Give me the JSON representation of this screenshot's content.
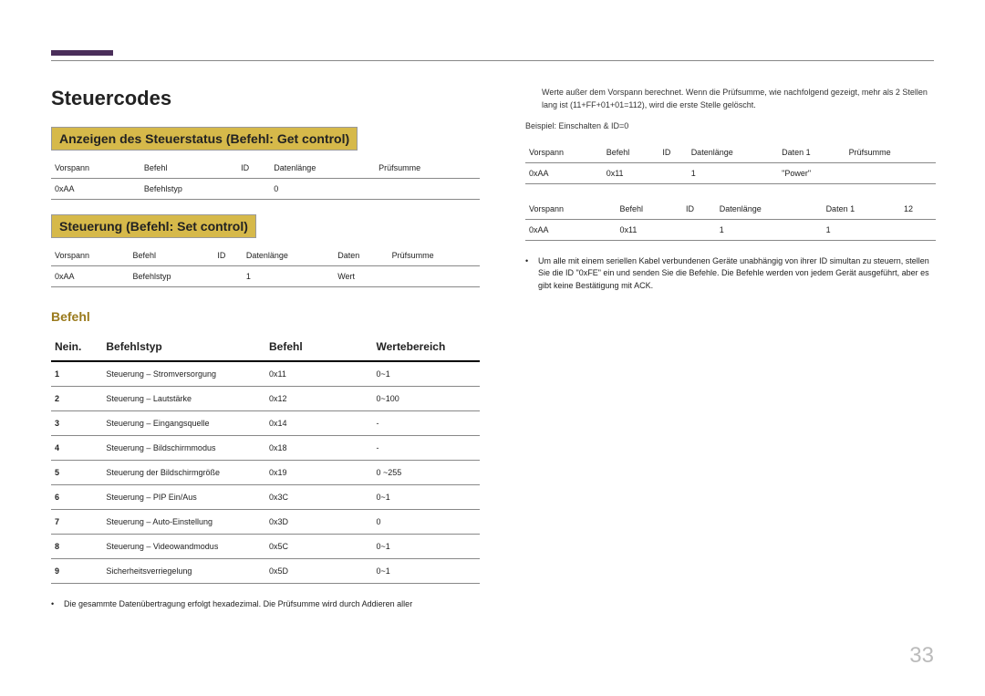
{
  "page_number": "33",
  "title": "Steuercodes",
  "section1": {
    "heading": "Anzeigen des Steuerstatus (Befehl: Get control)",
    "headers": [
      "Vorspann",
      "Befehl",
      "ID",
      "Datenlänge",
      "Prüfsumme"
    ],
    "row": [
      "0xAA",
      "Befehlstyp",
      "",
      "0",
      ""
    ]
  },
  "section2": {
    "heading": "Steuerung (Befehl: Set control)",
    "headers": [
      "Vorspann",
      "Befehl",
      "ID",
      "Datenlänge",
      "Daten",
      "Prüfsumme"
    ],
    "row": [
      "0xAA",
      "Befehlstyp",
      "",
      "1",
      "Wert",
      ""
    ]
  },
  "section3": {
    "heading": "Befehl",
    "headers": [
      "Nein.",
      "Befehlstyp",
      "Befehl",
      "Wertebereich"
    ],
    "rows": [
      [
        "1",
        "Steuerung – Stromversorgung",
        "0x11",
        "0~1"
      ],
      [
        "2",
        "Steuerung – Lautstärke",
        "0x12",
        "0~100"
      ],
      [
        "3",
        "Steuerung – Eingangsquelle",
        "0x14",
        "-"
      ],
      [
        "4",
        "Steuerung – Bildschirmmodus",
        "0x18",
        "-"
      ],
      [
        "5",
        "Steuerung der Bildschirmgröße",
        "0x19",
        "0 ~255"
      ],
      [
        "6",
        "Steuerung – PIP Ein/Aus",
        "0x3C",
        "0~1"
      ],
      [
        "7",
        "Steuerung – Auto-Einstellung",
        "0x3D",
        "0"
      ],
      [
        "8",
        "Steuerung – Videowandmodus",
        "0x5C",
        "0~1"
      ],
      [
        "9",
        "Sicherheitsverriegelung",
        "0x5D",
        "0~1"
      ]
    ]
  },
  "left_note": "Die gesammte Datenübertragung erfolgt hexadezimal. Die Prüfsumme wird durch Addieren aller",
  "right_para": "Werte außer dem Vorspann berechnet. Wenn die Prüfsumme, wie nachfolgend gezeigt, mehr als 2 Stellen lang ist (11+FF+01+01=112), wird die erste Stelle gelöscht.",
  "example_label": "Beispiel: Einschalten & ID=0",
  "tableR1": {
    "headers": [
      "Vorspann",
      "Befehl",
      "ID",
      "Datenlänge",
      "Daten 1",
      "Prüfsumme"
    ],
    "row": [
      "0xAA",
      "0x11",
      "",
      "1",
      "\"Power\"",
      ""
    ]
  },
  "tableR2": {
    "headers": [
      "Vorspann",
      "Befehl",
      "ID",
      "Datenlänge",
      "Daten 1",
      "12"
    ],
    "row": [
      "0xAA",
      "0x11",
      "",
      "1",
      "1",
      ""
    ]
  },
  "right_note": "Um alle mit einem seriellen Kabel verbundenen Geräte unabhängig von ihrer ID simultan zu steuern, stellen Sie die ID \"0xFE\" ein und senden Sie die Befehle. Die Befehle werden von jedem Gerät ausgeführt, aber es gibt keine Bestätigung mit ACK."
}
